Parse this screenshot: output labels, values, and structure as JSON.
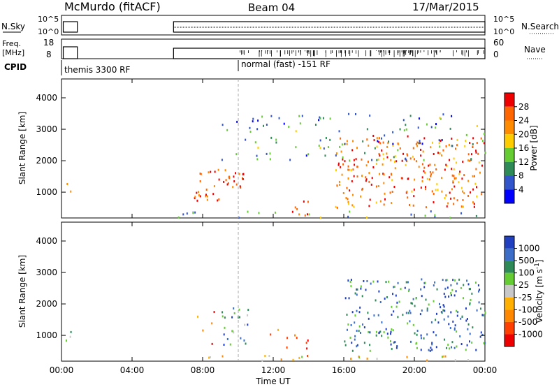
{
  "header": {
    "station": "McMurdo (fitACF)",
    "beam": "Beam 04",
    "date": "17/Mar/2015"
  },
  "top_panels": {
    "nsky": {
      "label": "N.Sky",
      "ytick_top": "10^5",
      "ytick_bottom": "10^0",
      "right_label": "N.Search",
      "right_tick_top": "10^5",
      "right_tick_bottom": "10^0"
    },
    "freq": {
      "label_line1": "Freq.",
      "label_line2": "[MHz]",
      "ytick_top": "18",
      "ytick_bottom": "8",
      "right_label": "Nave",
      "right_tick_top": "60",
      "right_tick_bottom": "0"
    },
    "cpid": {
      "label": "CPID",
      "modes": [
        {
          "name": "themis 3300 RF",
          "start_hour": 0
        },
        {
          "name": "normal (fast) -151 RF",
          "start_hour": 10.0
        }
      ]
    }
  },
  "chart_data": [
    {
      "type": "heatmap",
      "parameter": "Power",
      "ylabel": "Slant Range [km]",
      "y_ticks": [
        "1000",
        "2000",
        "3000",
        "4000"
      ],
      "ylim": [
        180,
        4600
      ],
      "colorbar_label": "Power [dB]",
      "colorbar_ticks": [
        "4",
        "8",
        "12",
        "16",
        "20",
        "24",
        "28"
      ],
      "colorbar_colors": [
        "#0000ff",
        "#3355cc",
        "#2e8b57",
        "#66cc33",
        "#ffcc00",
        "#ff8c00",
        "#ff6600",
        "#ee0000"
      ],
      "scatter_regions": [
        {
          "t0": 0.2,
          "t1": 0.5,
          "r0": 600,
          "r1": 1400,
          "level": 0.55
        },
        {
          "t0": 6.5,
          "t1": 7.0,
          "r0": 180,
          "r1": 300,
          "level": 0.6
        },
        {
          "t0": 7.5,
          "t1": 10.3,
          "r0": 700,
          "r1": 1800,
          "level": 0.85
        },
        {
          "t0": 13.0,
          "t1": 14.0,
          "r0": 250,
          "r1": 800,
          "level": 0.9
        },
        {
          "t0": 15.5,
          "t1": 24.0,
          "r0": 500,
          "r1": 2800,
          "level": 0.8
        },
        {
          "t0": 6.8,
          "t1": 24.0,
          "r0": 180,
          "r1": 400,
          "level": 0.35
        },
        {
          "t0": 9.0,
          "t1": 24.0,
          "r0": 2000,
          "r1": 3500,
          "level": 0.3
        }
      ]
    },
    {
      "type": "heatmap",
      "parameter": "Velocity",
      "ylabel": "Slant Range [km]",
      "y_ticks": [
        "1000",
        "2000",
        "3000",
        "4000"
      ],
      "ylim": [
        180,
        4600
      ],
      "colorbar_label": "Velocity [m s^-1]",
      "colorbar_ticks": [
        "1000",
        "500",
        "100",
        "25",
        "-25",
        "-100",
        "-500",
        "-1000"
      ],
      "colorbar_colors": [
        "#2040c0",
        "#3c6ec8",
        "#2e8b57",
        "#66cc33",
        "#c8c8c8",
        "#ffb000",
        "#ff8800",
        "#ff4000",
        "#ee0000"
      ],
      "scatter_regions": [
        {
          "t0": 0.2,
          "t1": 0.5,
          "r0": 600,
          "r1": 1400,
          "level": 0.7
        },
        {
          "t0": 7.5,
          "t1": 9.0,
          "r0": 600,
          "r1": 1800,
          "level": 0.15
        },
        {
          "t0": 9.0,
          "t1": 10.6,
          "r0": 700,
          "r1": 1900,
          "level": 0.75
        },
        {
          "t0": 11.5,
          "t1": 14.0,
          "r0": 250,
          "r1": 1200,
          "level": 0.25
        },
        {
          "t0": 16.0,
          "t1": 24.0,
          "r0": 500,
          "r1": 2800,
          "level": 0.8
        },
        {
          "t0": 6.8,
          "t1": 24.0,
          "r0": 180,
          "r1": 350,
          "level": 0.45
        }
      ]
    }
  ],
  "time_axis": {
    "label": "Time UT",
    "ticks": [
      "00:00",
      "04:00",
      "08:00",
      "12:00",
      "16:00",
      "20:00",
      "00:00"
    ]
  }
}
